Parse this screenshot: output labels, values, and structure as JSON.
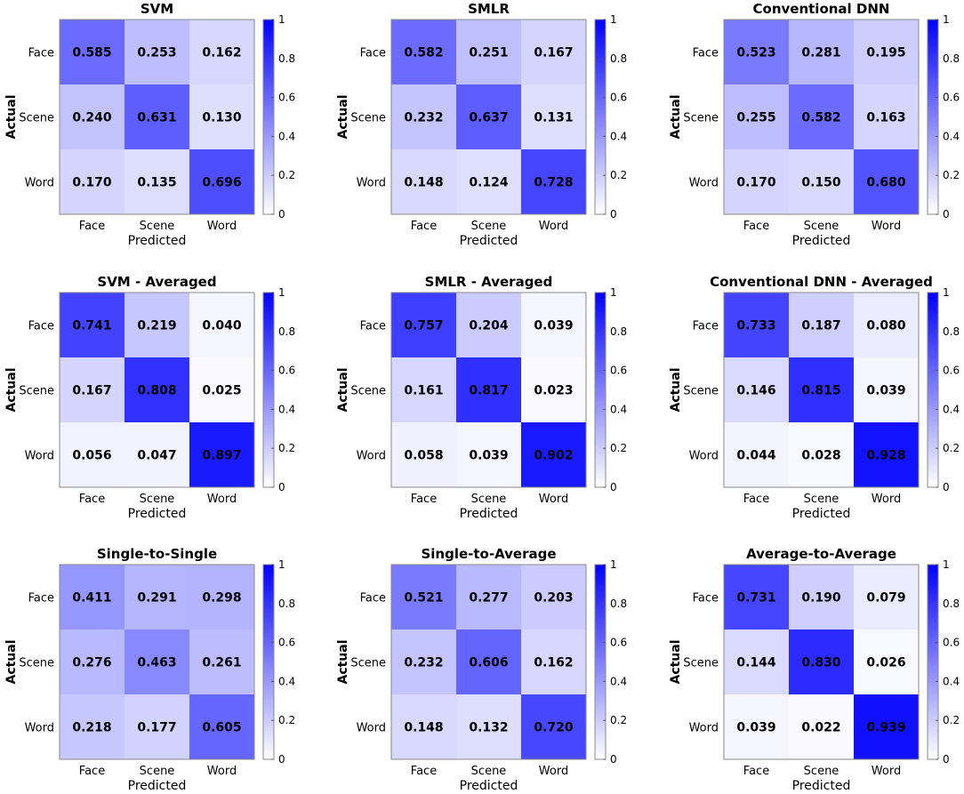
{
  "figure": {
    "colormap": {
      "low": "#ffffff",
      "high": "#0000ff"
    },
    "colorbar_ticks": [
      "0",
      "0.2",
      "0.4",
      "0.6",
      "0.8",
      "1"
    ],
    "colorbar_values": [
      0,
      0.2,
      0.4,
      0.6,
      0.8,
      1
    ]
  },
  "chart_data": [
    {
      "type": "heatmap",
      "title": "SVM",
      "xlabel": "Predicted",
      "ylabel": "Actual",
      "x_categories": [
        "Face",
        "Scene",
        "Word"
      ],
      "y_categories": [
        "Face",
        "Scene",
        "Word"
      ],
      "values": [
        [
          0.585,
          0.253,
          0.162
        ],
        [
          0.24,
          0.631,
          0.13
        ],
        [
          0.17,
          0.135,
          0.696
        ]
      ],
      "labels": [
        [
          "0.585",
          "0.253",
          "0.162"
        ],
        [
          "0.240",
          "0.631",
          "0.130"
        ],
        [
          "0.170",
          "0.135",
          "0.696"
        ]
      ],
      "clim": [
        0,
        1
      ]
    },
    {
      "type": "heatmap",
      "title": "SMLR",
      "xlabel": "Predicted",
      "ylabel": "Actual",
      "x_categories": [
        "Face",
        "Scene",
        "Word"
      ],
      "y_categories": [
        "Face",
        "Scene",
        "Word"
      ],
      "values": [
        [
          0.582,
          0.251,
          0.167
        ],
        [
          0.232,
          0.637,
          0.131
        ],
        [
          0.148,
          0.124,
          0.728
        ]
      ],
      "labels": [
        [
          "0.582",
          "0.251",
          "0.167"
        ],
        [
          "0.232",
          "0.637",
          "0.131"
        ],
        [
          "0.148",
          "0.124",
          "0.728"
        ]
      ],
      "clim": [
        0,
        1
      ]
    },
    {
      "type": "heatmap",
      "title": "Conventional DNN",
      "xlabel": "Predicted",
      "ylabel": "Actual",
      "x_categories": [
        "Face",
        "Scene",
        "Word"
      ],
      "y_categories": [
        "Face",
        "Scene",
        "Word"
      ],
      "values": [
        [
          0.523,
          0.281,
          0.195
        ],
        [
          0.255,
          0.582,
          0.163
        ],
        [
          0.17,
          0.15,
          0.68
        ]
      ],
      "labels": [
        [
          "0.523",
          "0.281",
          "0.195"
        ],
        [
          "0.255",
          "0.582",
          "0.163"
        ],
        [
          "0.170",
          "0.150",
          "0.680"
        ]
      ],
      "clim": [
        0,
        1
      ]
    },
    {
      "type": "heatmap",
      "title": "SVM - Averaged",
      "xlabel": "Predicted",
      "ylabel": "Actual",
      "x_categories": [
        "Face",
        "Scene",
        "Word"
      ],
      "y_categories": [
        "Face",
        "Scene",
        "Word"
      ],
      "values": [
        [
          0.741,
          0.219,
          0.04
        ],
        [
          0.167,
          0.808,
          0.025
        ],
        [
          0.056,
          0.047,
          0.897
        ]
      ],
      "labels": [
        [
          "0.741",
          "0.219",
          "0.040"
        ],
        [
          "0.167",
          "0.808",
          "0.025"
        ],
        [
          "0.056",
          "0.047",
          "0.897"
        ]
      ],
      "clim": [
        0,
        1
      ]
    },
    {
      "type": "heatmap",
      "title": "SMLR - Averaged",
      "xlabel": "Predicted",
      "ylabel": "Actual",
      "x_categories": [
        "Face",
        "Scene",
        "Word"
      ],
      "y_categories": [
        "Face",
        "Scene",
        "Word"
      ],
      "values": [
        [
          0.757,
          0.204,
          0.039
        ],
        [
          0.161,
          0.817,
          0.023
        ],
        [
          0.058,
          0.039,
          0.902
        ]
      ],
      "labels": [
        [
          "0.757",
          "0.204",
          "0.039"
        ],
        [
          "0.161",
          "0.817",
          "0.023"
        ],
        [
          "0.058",
          "0.039",
          "0.902"
        ]
      ],
      "clim": [
        0,
        1
      ]
    },
    {
      "type": "heatmap",
      "title": "Conventional DNN - Averaged",
      "xlabel": "Predicted",
      "ylabel": "Actual",
      "x_categories": [
        "Face",
        "Scene",
        "Word"
      ],
      "y_categories": [
        "Face",
        "Scene",
        "Word"
      ],
      "values": [
        [
          0.733,
          0.187,
          0.08
        ],
        [
          0.146,
          0.815,
          0.039
        ],
        [
          0.044,
          0.028,
          0.928
        ]
      ],
      "labels": [
        [
          "0.733",
          "0.187",
          "0.080"
        ],
        [
          "0.146",
          "0.815",
          "0.039"
        ],
        [
          "0.044",
          "0.028",
          "0.928"
        ]
      ],
      "clim": [
        0,
        1
      ]
    },
    {
      "type": "heatmap",
      "title": "Single-to-Single",
      "xlabel": "Predicted",
      "ylabel": "Actual",
      "x_categories": [
        "Face",
        "Scene",
        "Word"
      ],
      "y_categories": [
        "Face",
        "Scene",
        "Word"
      ],
      "values": [
        [
          0.411,
          0.291,
          0.298
        ],
        [
          0.276,
          0.463,
          0.261
        ],
        [
          0.218,
          0.177,
          0.605
        ]
      ],
      "labels": [
        [
          "0.411",
          "0.291",
          "0.298"
        ],
        [
          "0.276",
          "0.463",
          "0.261"
        ],
        [
          "0.218",
          "0.177",
          "0.605"
        ]
      ],
      "clim": [
        0,
        1
      ]
    },
    {
      "type": "heatmap",
      "title": "Single-to-Average",
      "xlabel": "Predicted",
      "ylabel": "Actual",
      "x_categories": [
        "Face",
        "Scene",
        "Word"
      ],
      "y_categories": [
        "Face",
        "Scene",
        "Word"
      ],
      "values": [
        [
          0.521,
          0.277,
          0.203
        ],
        [
          0.232,
          0.606,
          0.162
        ],
        [
          0.148,
          0.132,
          0.72
        ]
      ],
      "labels": [
        [
          "0.521",
          "0.277",
          "0.203"
        ],
        [
          "0.232",
          "0.606",
          "0.162"
        ],
        [
          "0.148",
          "0.132",
          "0.720"
        ]
      ],
      "clim": [
        0,
        1
      ]
    },
    {
      "type": "heatmap",
      "title": "Average-to-Average",
      "xlabel": "Predicted",
      "ylabel": "Actual",
      "x_categories": [
        "Face",
        "Scene",
        "Word"
      ],
      "y_categories": [
        "Face",
        "Scene",
        "Word"
      ],
      "values": [
        [
          0.731,
          0.19,
          0.079
        ],
        [
          0.144,
          0.83,
          0.026
        ],
        [
          0.039,
          0.022,
          0.939
        ]
      ],
      "labels": [
        [
          "0.731",
          "0.190",
          "0.079"
        ],
        [
          "0.144",
          "0.830",
          "0.026"
        ],
        [
          "0.039",
          "0.022",
          "0.939"
        ]
      ],
      "clim": [
        0,
        1
      ]
    }
  ]
}
